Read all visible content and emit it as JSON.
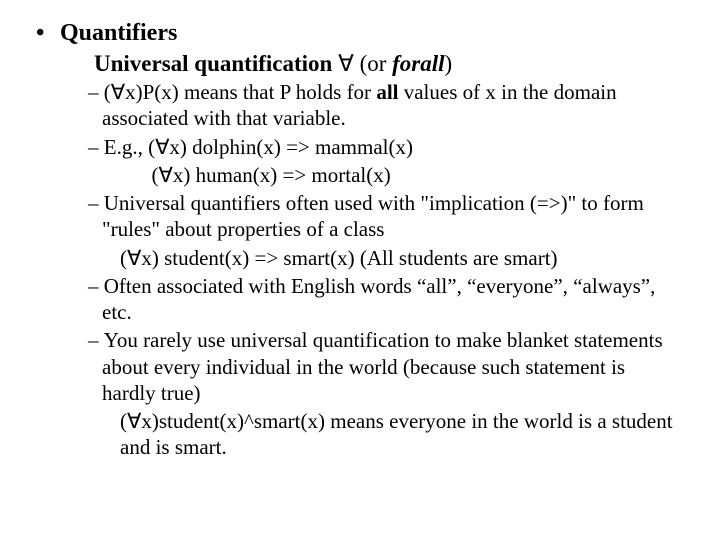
{
  "colors": {
    "background": "#ffffff",
    "text": "#000000"
  },
  "fonts": {
    "family": "Times New Roman",
    "l1_size": 24,
    "l2_size": 23,
    "l3_size": 21
  },
  "symbols": {
    "forall": "∀",
    "bullet_l1": "•",
    "dash": "–"
  },
  "l1_title": "Quantifiers",
  "l2_line_pre": "Universal quantification ",
  "l2_line_sym": "∀",
  "l2_line_post1": " (or ",
  "l2_line_forall": "forall",
  "l2_line_post2": ")",
  "b1_pre": "(∀x)P(x) means that P holds for ",
  "b1_bold": "all",
  "b1_post": " values of x in the domain associated with that variable.",
  "b2": "E.g., (∀x) dolphin(x) => mammal(x)",
  "b2_cont": "(∀x) human(x) => mortal(x)",
  "b3": "Universal quantifiers often used with \"implication (=>)\" to form \"rules\" about properties of a class",
  "b3_cont": "(∀x) student(x) => smart(x)  (All students are smart)",
  "b4": "Often associated with English words “all”, “everyone”, “always”, etc.",
  "b5": "You rarely use universal quantification to make blanket statements about every individual in the world (because such statement is hardly true)",
  "b5_cont": "(∀x)student(x)^smart(x) means everyone in the world is a student and is smart."
}
